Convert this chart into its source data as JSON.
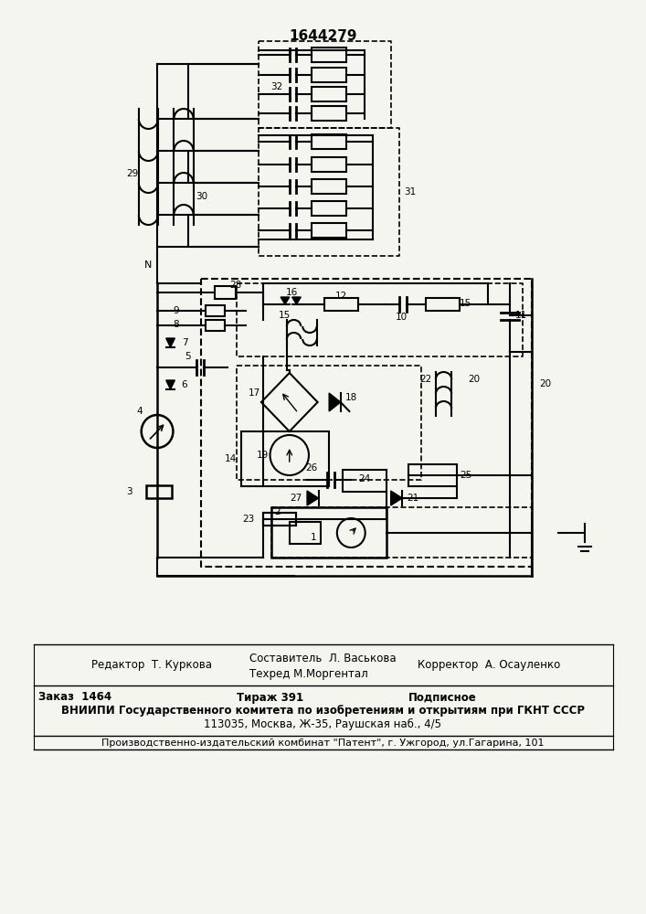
{
  "title_number": "1644279",
  "background_color": "#f5f5f0",
  "text_color": "#111111",
  "footer": {
    "editor_line": "Редактор  Т. Куркова",
    "composer_line1": "Составитель  Л. Васькова",
    "composer_line2": "Техред М.Моргентал",
    "corrector_line": "Корректор  А. Осауленко",
    "order_line": "Заказ  1464",
    "tirazh_line": "Тираж 391",
    "podpisnoe_line": "Подписное",
    "vniiipi_line": "ВНИИПИ Государственного комитета по изобретениям и открытиям при ГКНТ СССР",
    "address_line": "113035, Москва, Ж-35, Раушская наб., 4/5",
    "production_line": "Производственно-издательский комбинат \"Патент\", г. Ужгород, ул.Гагарина, 101"
  }
}
